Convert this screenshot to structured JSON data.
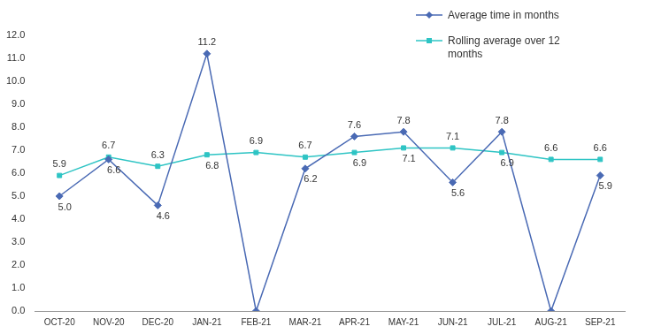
{
  "chart_data": {
    "type": "line",
    "categories": [
      "OCT-20",
      "NOV-20",
      "DEC-20",
      "JAN-21",
      "FEB-21",
      "MAR-21",
      "APR-21",
      "MAY-21",
      "JUN-21",
      "JUL-21",
      "AUG-21",
      "SEP-21"
    ],
    "series": [
      {
        "name": "Average time in months",
        "color": "#4a6ab4",
        "marker": "diamond",
        "values": [
          5.0,
          6.6,
          4.6,
          11.2,
          0.0,
          6.2,
          7.6,
          7.8,
          5.6,
          7.8,
          0.0,
          5.9
        ],
        "value_labels": [
          "5.0",
          "6.6",
          "4.6",
          "11.2",
          null,
          "6.2",
          "7.6",
          "7.8",
          "5.6",
          "7.8",
          null,
          "5.9"
        ]
      },
      {
        "name": "Rolling average over 12 months",
        "color": "#2ec4c4",
        "marker": "square",
        "values": [
          5.9,
          6.7,
          6.3,
          6.8,
          6.9,
          6.7,
          6.9,
          7.1,
          7.1,
          6.9,
          6.6,
          6.6
        ],
        "value_labels": [
          "5.9",
          "6.7",
          "6.3",
          "6.8",
          "6.9",
          "6.7",
          "6.9",
          "7.1",
          "7.1",
          "6.9",
          "6.6",
          "6.6"
        ]
      }
    ],
    "ylim": [
      0,
      12
    ],
    "yticks": [
      {
        "value": 0,
        "label": "0.0"
      },
      {
        "value": 1,
        "label": "1.0"
      },
      {
        "value": 2,
        "label": "2.0"
      },
      {
        "value": 3,
        "label": "3.0"
      },
      {
        "value": 4,
        "label": "4.0"
      },
      {
        "value": 5,
        "label": "5.0"
      },
      {
        "value": 6,
        "label": "6.0"
      },
      {
        "value": 7,
        "label": "7.0"
      },
      {
        "value": 8,
        "label": "8.0"
      },
      {
        "value": 9,
        "label": "9.0"
      },
      {
        "value": 10,
        "label": "10.0"
      },
      {
        "value": 11,
        "label": "11.0"
      },
      {
        "value": 12,
        "label": "12.0"
      }
    ],
    "grid": false,
    "legend": "top-right",
    "data_labels": true
  }
}
